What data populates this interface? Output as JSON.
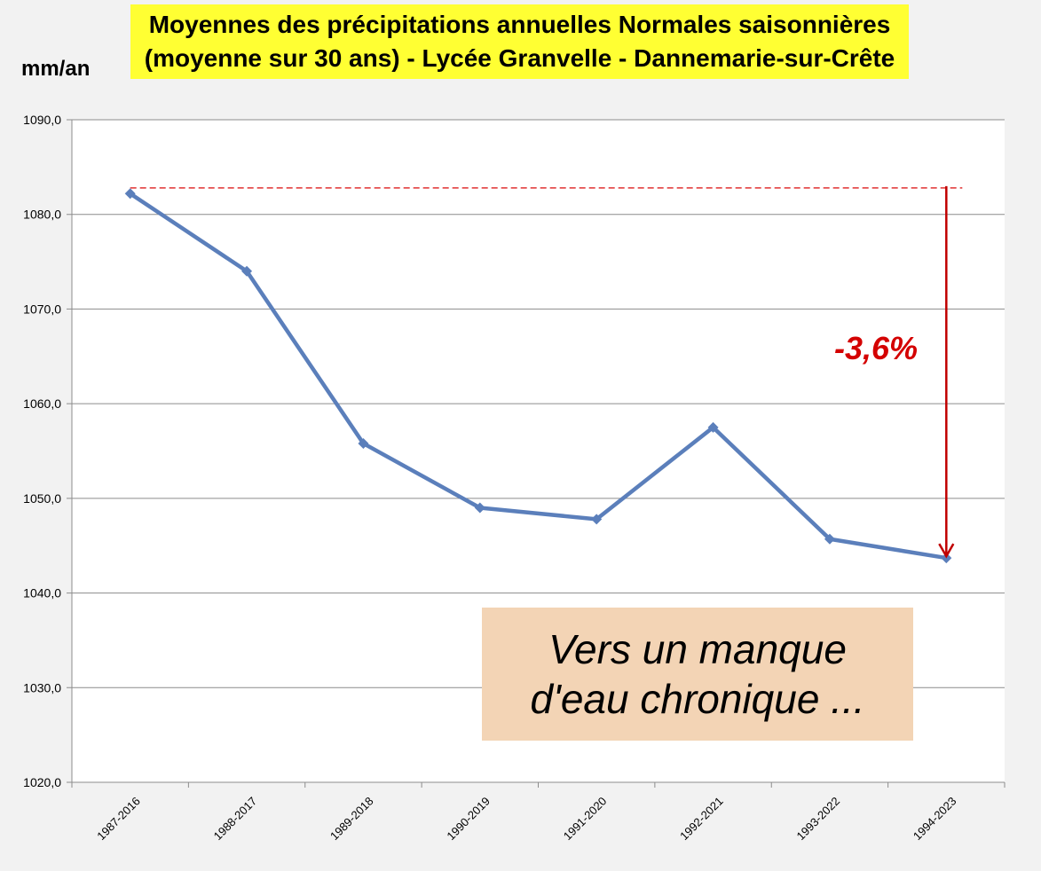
{
  "title": {
    "line1": "Moyennes des précipitations annuelles Normales saisonnières",
    "line2": "(moyenne sur 30 ans) - Lycée Granvelle - Dannemarie-sur-Crête"
  },
  "annotation": {
    "percent": "-3,6%",
    "note_line1": "Vers un manque",
    "note_line2": "d'eau chronique ..."
  },
  "colors": {
    "series": "#5b7fbb",
    "reference": "#e03030",
    "arrow": "#c00000",
    "title_bg": "#ffff33",
    "note_bg": "#f3d4b5"
  },
  "chart_data": {
    "type": "line",
    "title": "Moyennes des précipitations annuelles Normales saisonnières (moyenne sur 30 ans) - Lycée Granvelle - Dannemarie-sur-Crête",
    "ylabel": "mm/an",
    "xlabel": "",
    "ylim": [
      1020,
      1090
    ],
    "yticks": [
      "1020,0",
      "1030,0",
      "1040,0",
      "1050,0",
      "1060,0",
      "1070,0",
      "1080,0",
      "1090,0"
    ],
    "grid": true,
    "categories": [
      "1987-2016",
      "1988-2017",
      "1989-2018",
      "1990-2019",
      "1991-2020",
      "1992-2021",
      "1993-2022",
      "1994-2023"
    ],
    "series": [
      {
        "values": [
          1082.2,
          1074.0,
          1055.8,
          1049.0,
          1047.8,
          1057.5,
          1045.7,
          1043.7
        ]
      }
    ],
    "reference_line": 1082.8
  }
}
